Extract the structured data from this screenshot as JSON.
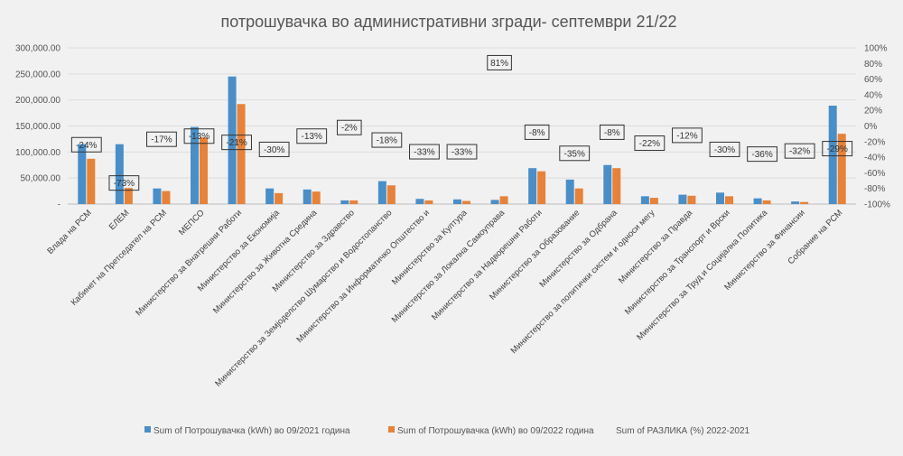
{
  "chart_data": {
    "type": "bar",
    "title": "потрошувачка во административни згради- септември 21/22",
    "categories": [
      "Влада на РСМ",
      "ЕЛЕМ",
      "Кабинет на Претседател на РСМ",
      "МЕПСО",
      "Министерство за Внатрешни Работи",
      "Министерство за Економија",
      "Министерство за Животна Средина",
      "Министерство за Здравство",
      "Министерство за Земјоделство Шумарство и Водостопанство",
      "Министерство за Информатичко Општество и",
      "Министерство за Култура",
      "Министерство за Локална Самоуправа",
      "Министерство за Надворешни Работи",
      "Министерство за Образование",
      "Министерство за Одбрана",
      "Министерство за политички систем и односи мегу",
      "Министерство за Правда",
      "Министерство за Транспорт и Врски",
      "Министерство за Труд и Социјална Политика",
      "Министерство за Финансии",
      "Собрание на РСМ"
    ],
    "series": [
      {
        "name": "Sum of Потрошувачка (kWh) во 09/2021 година",
        "color": "#4a8ec7",
        "values": [
          115000,
          115000,
          30000,
          148000,
          245000,
          30000,
          28000,
          7000,
          44000,
          10000,
          9000,
          8000,
          69000,
          47000,
          75000,
          15000,
          18000,
          22000,
          11000,
          5000,
          189000
        ]
      },
      {
        "name": "Sum of Потрошувачка (kWh) во 09/2022 година",
        "color": "#e6823a",
        "values": [
          87000,
          31000,
          25000,
          128000,
          192000,
          21000,
          24000,
          7000,
          36000,
          7000,
          6000,
          15000,
          63000,
          30000,
          69000,
          12000,
          16000,
          15000,
          7000,
          4000,
          135000
        ]
      },
      {
        "name": "Sum of РАЗЛИКА (%) 2022-2021",
        "labels": [
          "-24%",
          "-73%",
          "-17%",
          "-13%",
          "-21%",
          "-30%",
          "-13%",
          "-2%",
          "-18%",
          "-33%",
          "-33%",
          "81%",
          "-8%",
          "-35%",
          "-8%",
          "-22%",
          "-12%",
          "-30%",
          "-36%",
          "-32%",
          "-29%"
        ],
        "values": [
          -24,
          -73,
          -17,
          -13,
          -21,
          -30,
          -13,
          -2,
          -18,
          -33,
          -33,
          81,
          -8,
          -35,
          -8,
          -22,
          -12,
          -30,
          -36,
          -32,
          -29
        ]
      }
    ],
    "y_ticks": [
      "-",
      "50,000.00",
      "100,000.00",
      "150,000.00",
      "200,000.00",
      "250,000.00",
      "300,000.00"
    ],
    "ylim": [
      0,
      300000
    ],
    "y2_ticks": [
      "-100%",
      "-80%",
      "-60%",
      "-40%",
      "-20%",
      "0%",
      "20%",
      "40%",
      "60%",
      "80%",
      "100%"
    ],
    "y2lim": [
      -100,
      100
    ],
    "grid": true,
    "legend_position": "bottom"
  }
}
